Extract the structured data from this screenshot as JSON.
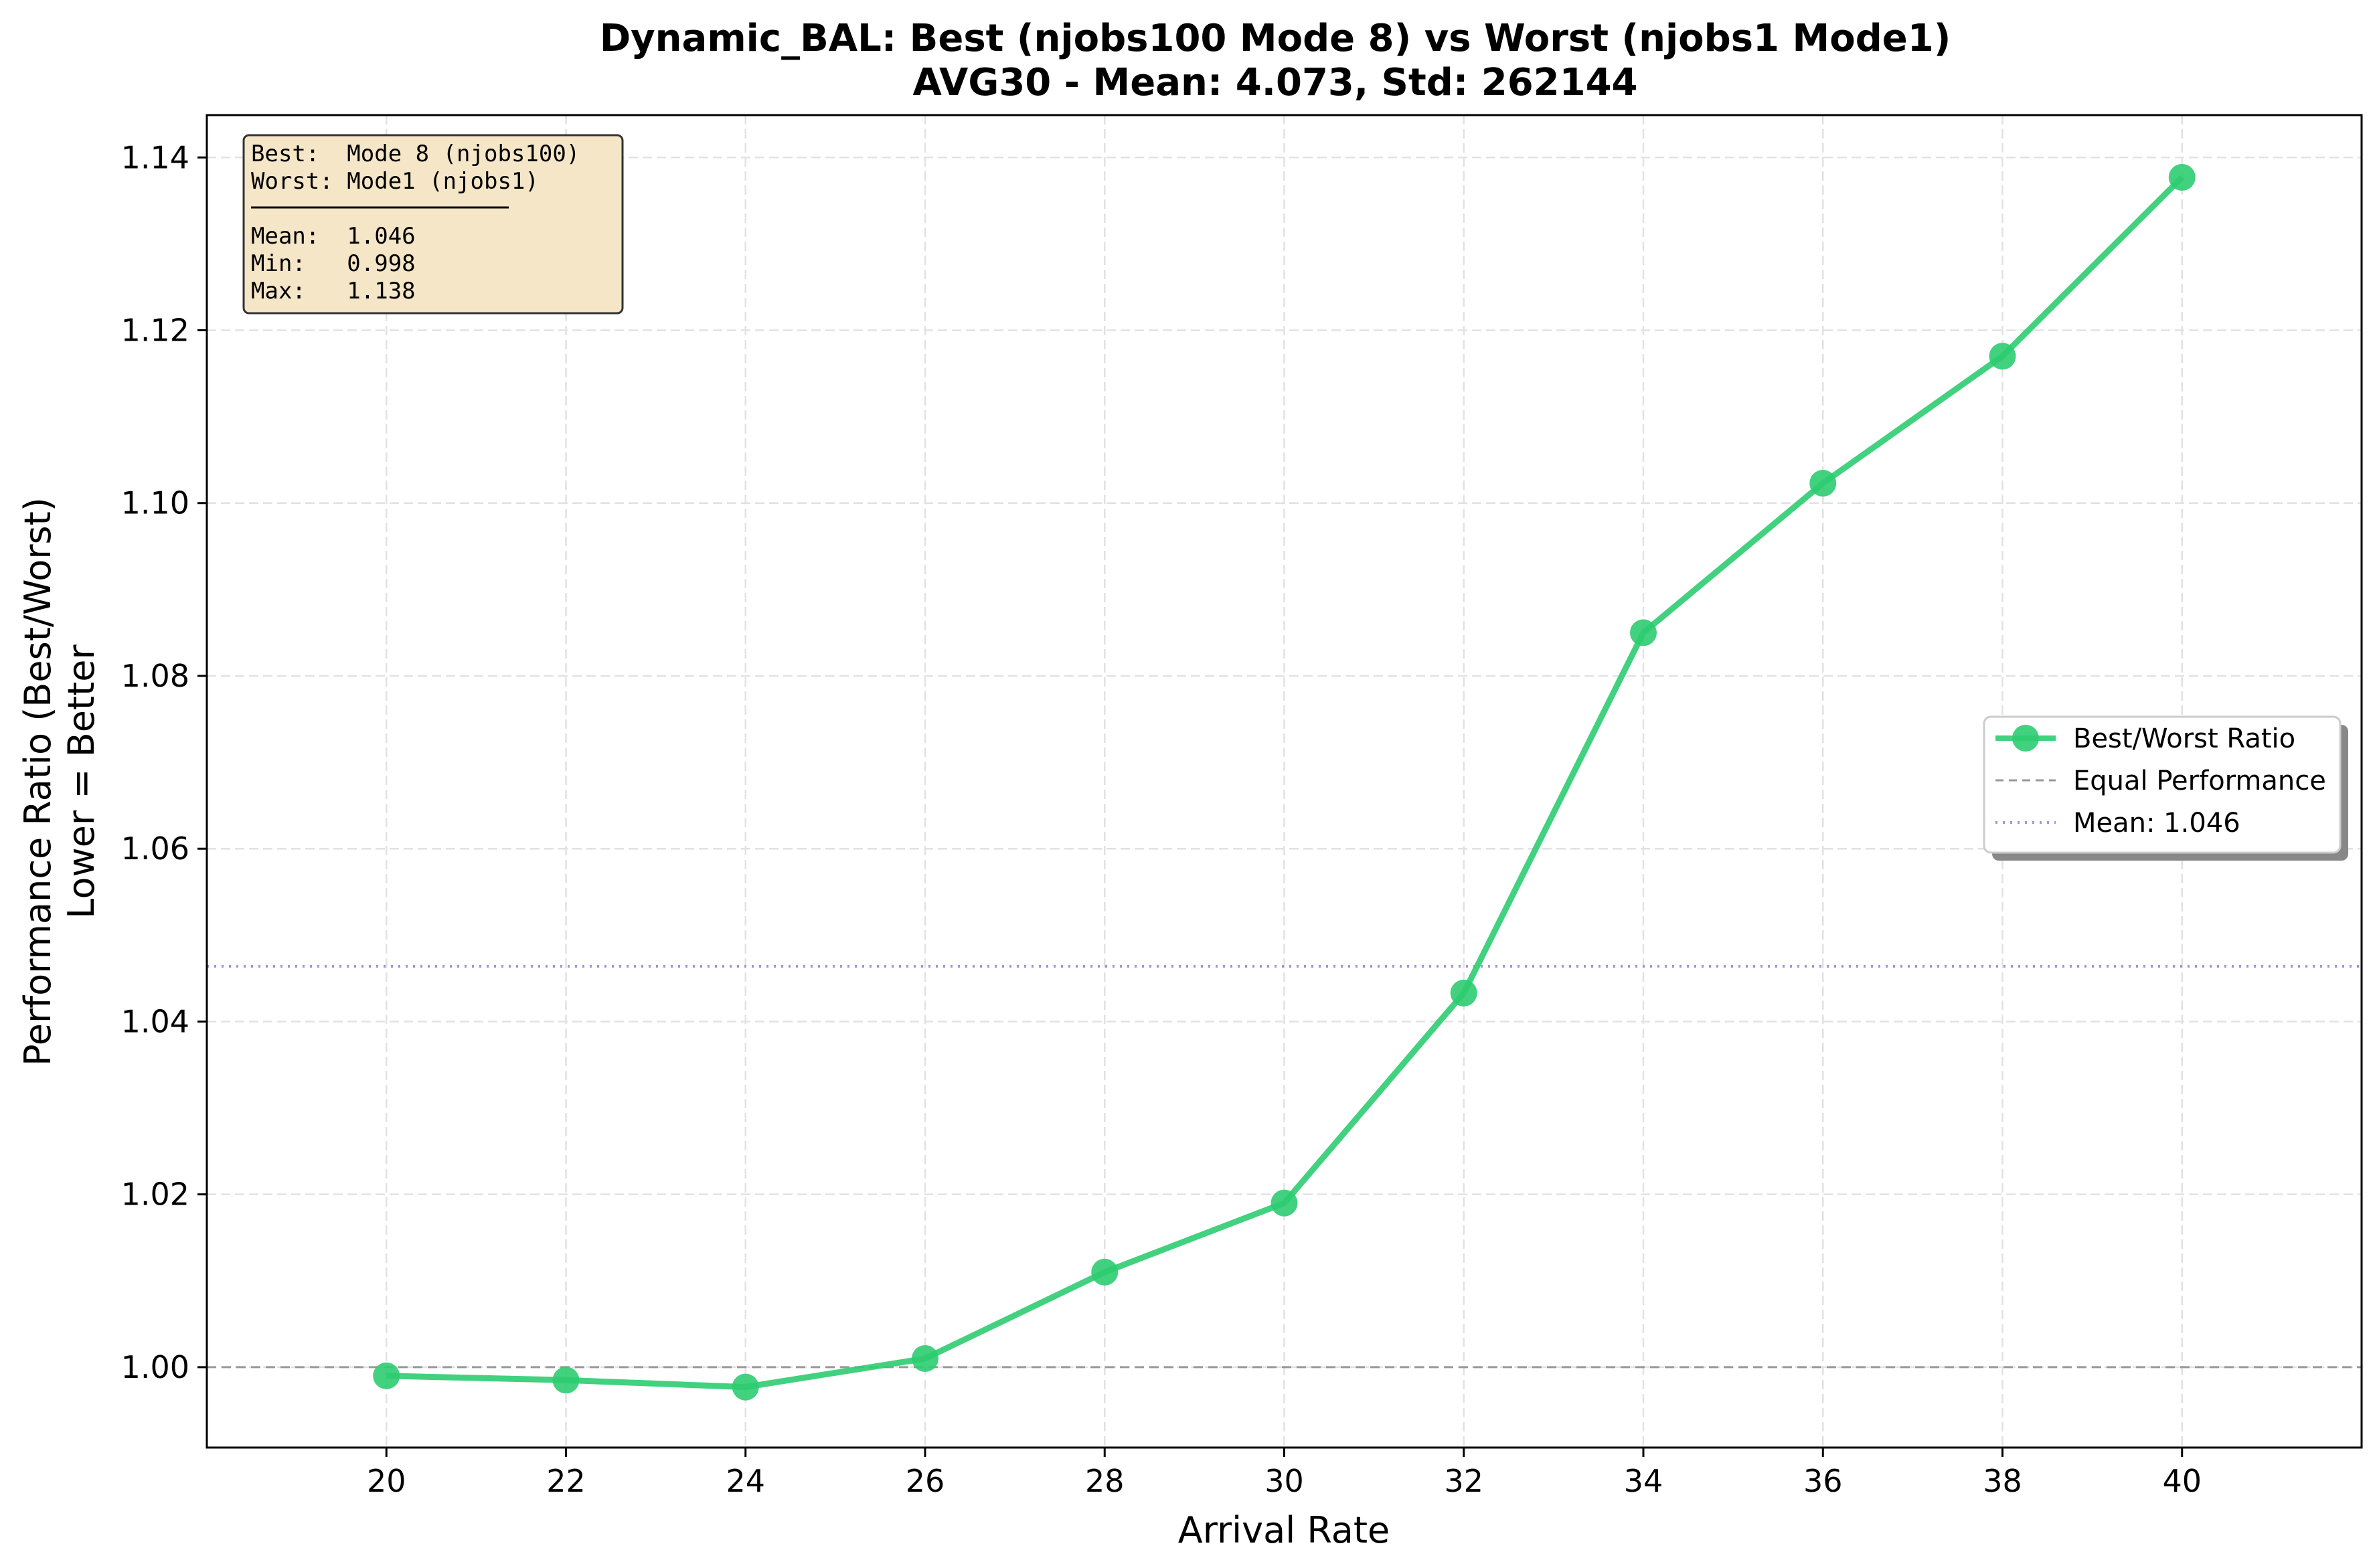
{
  "chart_data": {
    "type": "line",
    "title_line1": "Dynamic_BAL: Best (njobs100 Mode 8) vs Worst (njobs1 Mode1)",
    "title_line2": "AVG30 - Mean: 4.073, Std: 262144",
    "xlabel": "Arrival Rate",
    "ylabel_line1": "Performance Ratio (Best/Worst)",
    "ylabel_line2": "Lower = Better",
    "xlim": [
      18,
      42
    ],
    "ylim": [
      0.9907,
      1.1449
    ],
    "x_ticks": [
      20,
      22,
      24,
      26,
      28,
      30,
      32,
      34,
      36,
      38,
      40
    ],
    "x_tick_labels": [
      "20",
      "22",
      "24",
      "26",
      "28",
      "30",
      "32",
      "34",
      "36",
      "38",
      "40"
    ],
    "y_ticks": [
      1.0,
      1.02,
      1.04,
      1.06,
      1.08,
      1.1,
      1.12,
      1.14
    ],
    "y_tick_labels": [
      "1.00",
      "1.02",
      "1.04",
      "1.06",
      "1.08",
      "1.10",
      "1.12",
      "1.14"
    ],
    "grid": true,
    "series": [
      {
        "name": "Best/Worst Ratio",
        "color": "#2ecc71",
        "x": [
          20,
          22,
          24,
          26,
          28,
          30,
          32,
          34,
          36,
          38,
          40
        ],
        "y": [
          0.999,
          0.9985,
          0.9977,
          1.001,
          1.011,
          1.019,
          1.0433,
          1.085,
          1.1023,
          1.117,
          1.1377
        ]
      }
    ],
    "reference_lines": [
      {
        "name": "Equal Performance",
        "y": 1.0,
        "style": "dashed",
        "color": "#999999"
      },
      {
        "name": "Mean: 1.046",
        "y": 1.0464,
        "style": "dotted",
        "color": "#9999dd"
      }
    ],
    "legend_position": "center-right",
    "stats_box": {
      "lines": [
        "Best:  Mode 8 (njobs100)",
        "Worst: Mode1 (njobs1)",
        "───────────────────────",
        "Mean:  1.046",
        "Min:   0.998",
        "Max:   1.138"
      ],
      "background": "#f5e6c8"
    }
  }
}
